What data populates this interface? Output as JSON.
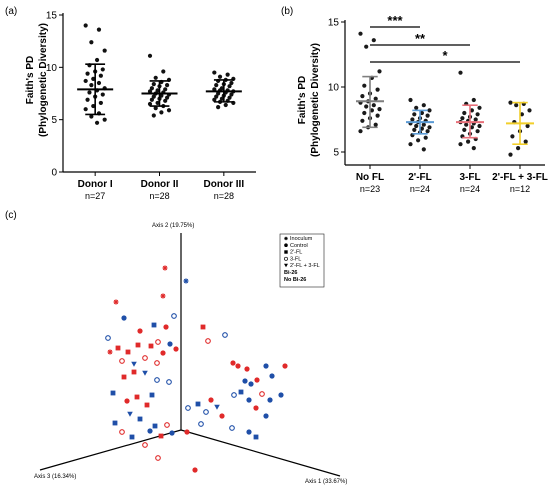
{
  "panel_labels": {
    "a": "(a)",
    "b": "(b)",
    "c": "(c)"
  },
  "colors": {
    "red": "#e02a2a",
    "blue": "#1f4fa8",
    "grey": "#7f7f7f",
    "lightblue": "#5b9bd5",
    "pink": "#e8707a",
    "yellow": "#f2cf2a"
  },
  "chart_data": [
    {
      "type": "scatter",
      "subtype": "dot-plot with mean and SD",
      "panel": "a",
      "ylabel": "Faith's PD (Phylogenetic Diversity)",
      "ylabel_lines": [
        "Faith's PD",
        "(Phylogenetic Diversity)"
      ],
      "ylim": [
        0,
        15
      ],
      "yticks": [
        0,
        5,
        10,
        15
      ],
      "categories": [
        "Donor I",
        "Donor II",
        "Donor III"
      ],
      "n_labels": [
        "n=27",
        "n=28",
        "n=28"
      ],
      "means": [
        7.9,
        7.5,
        7.7
      ],
      "sd_low": [
        5.5,
        6.3,
        6.7
      ],
      "sd_high": [
        10.3,
        8.7,
        8.8
      ],
      "points": [
        [
          14.0,
          13.6,
          12.4,
          11.6,
          10.7,
          10.2,
          9.8,
          9.6,
          9.4,
          9.2,
          8.9,
          8.7,
          8.5,
          8.3,
          8.0,
          7.8,
          7.6,
          7.4,
          7.2,
          6.9,
          6.6,
          6.3,
          6.0,
          5.6,
          5.3,
          5.0,
          4.7
        ],
        [
          11.1,
          9.6,
          9.0,
          8.8,
          8.6,
          8.4,
          8.3,
          8.2,
          8.0,
          7.9,
          7.8,
          7.7,
          7.6,
          7.5,
          7.4,
          7.3,
          7.2,
          7.1,
          7.0,
          6.9,
          6.8,
          6.6,
          6.5,
          6.3,
          6.1,
          5.9,
          5.7,
          5.4
        ],
        [
          9.5,
          9.3,
          9.1,
          8.9,
          8.8,
          8.7,
          8.5,
          8.4,
          8.3,
          8.2,
          8.0,
          7.9,
          7.8,
          7.8,
          7.7,
          7.6,
          7.5,
          7.4,
          7.3,
          7.2,
          7.1,
          7.0,
          6.9,
          6.8,
          6.7,
          6.6,
          6.4,
          6.2
        ]
      ]
    },
    {
      "type": "scatter",
      "subtype": "dot-plot with mean and SD",
      "panel": "b",
      "ylabel": "Faith's PD (Phylogenetic Diversity)",
      "ylabel_lines": [
        "Faith's PD",
        "(Phylogenetic Diversity)"
      ],
      "ylim": [
        4,
        15
      ],
      "yticks": [
        5,
        10,
        15
      ],
      "categories": [
        "No FL",
        "2'-FL",
        "3-FL",
        "2'-FL + 3-FL"
      ],
      "n_labels": [
        "n=23",
        "n=24",
        "n=24",
        "n=12"
      ],
      "series_colors": [
        "#7f7f7f",
        "#5b9bd5",
        "#e8707a",
        "#f2cf2a"
      ],
      "means": [
        8.9,
        7.3,
        7.3,
        7.2
      ],
      "sd_low": [
        6.9,
        6.4,
        6.1,
        5.6
      ],
      "sd_high": [
        10.8,
        8.2,
        8.6,
        8.8
      ],
      "points": [
        [
          14.1,
          13.6,
          13.1,
          11.2,
          10.7,
          10.1,
          9.8,
          9.5,
          9.3,
          9.1,
          8.9,
          8.8,
          8.6,
          8.5,
          8.3,
          8.2,
          8.0,
          7.8,
          7.6,
          7.4,
          7.1,
          6.9,
          6.6
        ],
        [
          9.0,
          8.6,
          8.4,
          8.2,
          8.0,
          7.9,
          7.8,
          7.6,
          7.5,
          7.4,
          7.3,
          7.2,
          7.1,
          7.0,
          6.9,
          6.8,
          6.7,
          6.6,
          6.5,
          6.3,
          6.1,
          5.9,
          5.6,
          5.2
        ],
        [
          11.1,
          9.0,
          8.7,
          8.4,
          8.2,
          8.0,
          7.9,
          7.7,
          7.6,
          7.5,
          7.4,
          7.3,
          7.2,
          7.1,
          7.0,
          6.9,
          6.7,
          6.6,
          6.4,
          6.2,
          6.0,
          5.8,
          5.6,
          5.3
        ],
        [
          8.8,
          8.7,
          8.6,
          8.2,
          7.9,
          7.3,
          7.0,
          6.6,
          6.2,
          5.8,
          5.3,
          4.8
        ]
      ],
      "significance": [
        {
          "from": "No FL",
          "to": "2'-FL",
          "label": "***"
        },
        {
          "from": "No FL",
          "to": "3-FL",
          "label": "**"
        },
        {
          "from": "No FL",
          "to": "2'-FL + 3-FL",
          "label": "*"
        }
      ]
    },
    {
      "type": "scatter",
      "subtype": "3D PCoA ordination",
      "panel": "c",
      "axes": [
        "Axis 1 (33.67%)",
        "Axis 2 (19.75%)",
        "Axis 3 (16.34%)"
      ],
      "legend": [
        "Inoculum",
        "Control",
        "2'-FL",
        "3-FL",
        "2'-FL + 3-FL",
        "Bi-26",
        "No Bi-26"
      ],
      "legend_colors": [
        "#000000",
        "#000000",
        "#000000",
        "#000000",
        "#000000",
        "#e02a2a",
        "#1f4fa8"
      ],
      "legend_shapes": [
        "asterisk",
        "circle",
        "square",
        "open-circle",
        "triangle-down",
        "none",
        "none"
      ],
      "points": [
        {
          "x": 165,
          "y": 268,
          "shape": "asterisk",
          "color": "red"
        },
        {
          "x": 163,
          "y": 296,
          "shape": "asterisk",
          "color": "red"
        },
        {
          "x": 186,
          "y": 281,
          "shape": "asterisk",
          "color": "blue"
        },
        {
          "x": 116,
          "y": 302,
          "shape": "asterisk",
          "color": "red"
        },
        {
          "x": 110,
          "y": 352,
          "shape": "asterisk",
          "color": "red"
        },
        {
          "x": 124,
          "y": 318,
          "shape": "circle",
          "color": "blue"
        },
        {
          "x": 140,
          "y": 331,
          "shape": "circle",
          "color": "red"
        },
        {
          "x": 154,
          "y": 325,
          "shape": "square",
          "color": "blue"
        },
        {
          "x": 166,
          "y": 327,
          "shape": "circle",
          "color": "red"
        },
        {
          "x": 174,
          "y": 316,
          "shape": "open-circle",
          "color": "blue"
        },
        {
          "x": 108,
          "y": 338,
          "shape": "open-circle",
          "color": "blue"
        },
        {
          "x": 118,
          "y": 348,
          "shape": "square",
          "color": "red"
        },
        {
          "x": 128,
          "y": 352,
          "shape": "square",
          "color": "red"
        },
        {
          "x": 138,
          "y": 345,
          "shape": "square",
          "color": "red"
        },
        {
          "x": 151,
          "y": 346,
          "shape": "square",
          "color": "red"
        },
        {
          "x": 158,
          "y": 342,
          "shape": "open-circle",
          "color": "red"
        },
        {
          "x": 163,
          "y": 353,
          "shape": "circle",
          "color": "red"
        },
        {
          "x": 170,
          "y": 344,
          "shape": "circle",
          "color": "blue"
        },
        {
          "x": 176,
          "y": 349,
          "shape": "circle",
          "color": "red"
        },
        {
          "x": 203,
          "y": 327,
          "shape": "square",
          "color": "red"
        },
        {
          "x": 208,
          "y": 341,
          "shape": "open-circle",
          "color": "red"
        },
        {
          "x": 225,
          "y": 335,
          "shape": "open-circle",
          "color": "blue"
        },
        {
          "x": 122,
          "y": 361,
          "shape": "open-circle",
          "color": "red"
        },
        {
          "x": 134,
          "y": 364,
          "shape": "triangle-down",
          "color": "blue"
        },
        {
          "x": 145,
          "y": 358,
          "shape": "open-circle",
          "color": "red"
        },
        {
          "x": 157,
          "y": 363,
          "shape": "open-circle",
          "color": "red"
        },
        {
          "x": 124,
          "y": 377,
          "shape": "square",
          "color": "red"
        },
        {
          "x": 134,
          "y": 372,
          "shape": "square",
          "color": "red"
        },
        {
          "x": 145,
          "y": 373,
          "shape": "triangle-down",
          "color": "blue"
        },
        {
          "x": 157,
          "y": 380,
          "shape": "open-circle",
          "color": "blue"
        },
        {
          "x": 169,
          "y": 382,
          "shape": "open-circle",
          "color": "blue"
        },
        {
          "x": 113,
          "y": 393,
          "shape": "square",
          "color": "blue"
        },
        {
          "x": 127,
          "y": 401,
          "shape": "circle",
          "color": "red"
        },
        {
          "x": 137,
          "y": 397,
          "shape": "square",
          "color": "red"
        },
        {
          "x": 147,
          "y": 405,
          "shape": "square",
          "color": "red"
        },
        {
          "x": 152,
          "y": 395,
          "shape": "square",
          "color": "blue"
        },
        {
          "x": 130,
          "y": 414,
          "shape": "triangle-down",
          "color": "blue"
        },
        {
          "x": 140,
          "y": 419,
          "shape": "square",
          "color": "blue"
        },
        {
          "x": 115,
          "y": 423,
          "shape": "square",
          "color": "blue"
        },
        {
          "x": 122,
          "y": 432,
          "shape": "open-circle",
          "color": "red"
        },
        {
          "x": 132,
          "y": 437,
          "shape": "square",
          "color": "blue"
        },
        {
          "x": 150,
          "y": 431,
          "shape": "circle",
          "color": "blue"
        },
        {
          "x": 155,
          "y": 426,
          "shape": "square",
          "color": "blue"
        },
        {
          "x": 161,
          "y": 436,
          "shape": "square",
          "color": "red"
        },
        {
          "x": 167,
          "y": 425,
          "shape": "open-circle",
          "color": "red"
        },
        {
          "x": 172,
          "y": 433,
          "shape": "circle",
          "color": "blue"
        },
        {
          "x": 145,
          "y": 445,
          "shape": "open-circle",
          "color": "red"
        },
        {
          "x": 158,
          "y": 458,
          "shape": "open-circle",
          "color": "red"
        },
        {
          "x": 188,
          "y": 408,
          "shape": "open-circle",
          "color": "blue"
        },
        {
          "x": 198,
          "y": 404,
          "shape": "square",
          "color": "blue"
        },
        {
          "x": 206,
          "y": 412,
          "shape": "open-circle",
          "color": "blue"
        },
        {
          "x": 211,
          "y": 400,
          "shape": "circle",
          "color": "red"
        },
        {
          "x": 217,
          "y": 407,
          "shape": "triangle-down",
          "color": "blue"
        },
        {
          "x": 222,
          "y": 416,
          "shape": "circle",
          "color": "red"
        },
        {
          "x": 201,
          "y": 424,
          "shape": "open-circle",
          "color": "blue"
        },
        {
          "x": 187,
          "y": 432,
          "shape": "circle",
          "color": "red"
        },
        {
          "x": 233,
          "y": 363,
          "shape": "circle",
          "color": "red"
        },
        {
          "x": 238,
          "y": 366,
          "shape": "circle",
          "color": "red"
        },
        {
          "x": 245,
          "y": 381,
          "shape": "circle",
          "color": "blue"
        },
        {
          "x": 251,
          "y": 384,
          "shape": "circle",
          "color": "blue"
        },
        {
          "x": 247,
          "y": 369,
          "shape": "circle",
          "color": "red"
        },
        {
          "x": 257,
          "y": 380,
          "shape": "circle",
          "color": "red"
        },
        {
          "x": 266,
          "y": 366,
          "shape": "circle",
          "color": "blue"
        },
        {
          "x": 272,
          "y": 376,
          "shape": "circle",
          "color": "blue"
        },
        {
          "x": 285,
          "y": 366,
          "shape": "circle",
          "color": "red"
        },
        {
          "x": 234,
          "y": 395,
          "shape": "open-circle",
          "color": "blue"
        },
        {
          "x": 241,
          "y": 392,
          "shape": "square",
          "color": "blue"
        },
        {
          "x": 262,
          "y": 394,
          "shape": "open-circle",
          "color": "red"
        },
        {
          "x": 249,
          "y": 400,
          "shape": "circle",
          "color": "blue"
        },
        {
          "x": 256,
          "y": 408,
          "shape": "circle",
          "color": "red"
        },
        {
          "x": 270,
          "y": 400,
          "shape": "circle",
          "color": "blue"
        },
        {
          "x": 281,
          "y": 395,
          "shape": "circle",
          "color": "blue"
        },
        {
          "x": 266,
          "y": 416,
          "shape": "circle",
          "color": "blue"
        },
        {
          "x": 232,
          "y": 428,
          "shape": "open-circle",
          "color": "blue"
        },
        {
          "x": 249,
          "y": 432,
          "shape": "circle",
          "color": "blue"
        },
        {
          "x": 256,
          "y": 437,
          "shape": "square",
          "color": "blue"
        },
        {
          "x": 195,
          "y": 470,
          "shape": "circle",
          "color": "red"
        }
      ]
    }
  ]
}
